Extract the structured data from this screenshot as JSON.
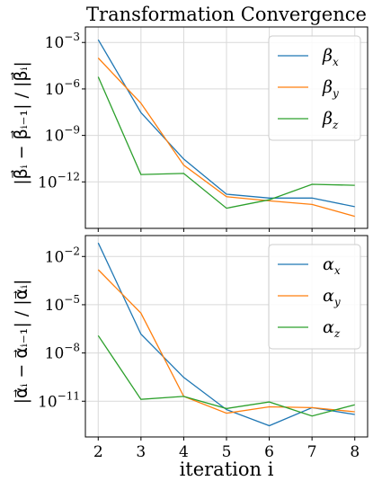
{
  "chart_data": [
    {
      "type": "line",
      "title": "Transformation Convergence",
      "ylabel": "|β⃗ᵢ − β⃗ᵢ₋₁| / |β⃗ᵢ|",
      "xlabel": "",
      "yscale": "log",
      "ylim": [
        1e-15,
        0.01
      ],
      "xlim": [
        1.7,
        8.3
      ],
      "yticks": [
        {
          "value": 0.001,
          "mant": "10",
          "exp": "−3"
        },
        {
          "value": 1e-06,
          "mant": "10",
          "exp": "−6"
        },
        {
          "value": 1e-09,
          "mant": "10",
          "exp": "−9"
        },
        {
          "value": 1e-12,
          "mant": "10",
          "exp": "−12"
        }
      ],
      "grid": true,
      "legend_position": "top-right",
      "x": [
        2,
        3,
        4,
        5,
        6,
        7,
        8
      ],
      "series": [
        {
          "name": "β",
          "sub": "x",
          "color": "#1f77b4",
          "values": [
            0.0015,
            3e-08,
            3e-11,
            1.6e-13,
            9e-14,
            9e-14,
            2.5e-14
          ]
        },
        {
          "name": "β",
          "sub": "y",
          "color": "#ff7f0e",
          "values": [
            0.0001,
            1.2e-07,
            1.2e-11,
            1.1e-13,
            6e-14,
            3.5e-14,
            6e-15
          ]
        },
        {
          "name": "β",
          "sub": "z",
          "color": "#2ca02c",
          "values": [
            6e-06,
            3e-12,
            3.5e-12,
            2e-14,
            7e-14,
            7e-13,
            6e-13
          ]
        }
      ]
    },
    {
      "type": "line",
      "title": "",
      "ylabel": "|α⃗ᵢ − α⃗ᵢ₋₁| / |α⃗ᵢ|",
      "xlabel": "iteration i",
      "yscale": "log",
      "ylim": [
        6e-14,
        0.2
      ],
      "xlim": [
        1.7,
        8.3
      ],
      "yticks": [
        {
          "value": 0.01,
          "mant": "10",
          "exp": "−2"
        },
        {
          "value": 1e-05,
          "mant": "10",
          "exp": "−5"
        },
        {
          "value": 1e-08,
          "mant": "10",
          "exp": "−8"
        },
        {
          "value": 1e-11,
          "mant": "10",
          "exp": "−11"
        }
      ],
      "xticks": [
        "2",
        "3",
        "4",
        "5",
        "6",
        "7",
        "8"
      ],
      "grid": true,
      "legend_position": "top-right",
      "x": [
        2,
        3,
        4,
        5,
        6,
        7,
        8
      ],
      "series": [
        {
          "name": "α",
          "sub": "x",
          "color": "#1f77b4",
          "values": [
            0.07,
            1.5e-07,
            3e-10,
            3e-12,
            3e-13,
            4e-12,
            1.5e-12
          ]
        },
        {
          "name": "α",
          "sub": "y",
          "color": "#ff7f0e",
          "values": [
            0.0015,
            3e-06,
            2e-11,
            1.8e-12,
            4.5e-12,
            4e-12,
            2.2e-12
          ]
        },
        {
          "name": "α",
          "sub": "z",
          "color": "#2ca02c",
          "values": [
            1.2e-07,
            1.3e-11,
            2e-11,
            3.5e-12,
            9e-12,
            1.2e-12,
            6e-12
          ]
        }
      ]
    }
  ]
}
